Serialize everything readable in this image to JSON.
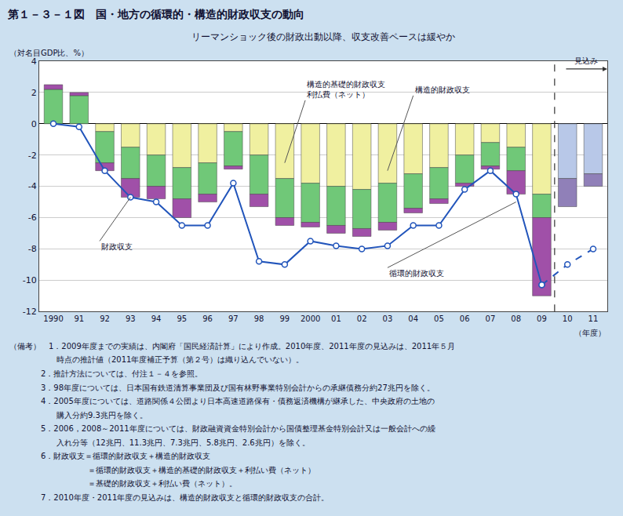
{
  "chart_data": {
    "type": "bar",
    "title": "第１－３－１図　国・地方の循環的・構造的財政収支の動向",
    "subtitle": "リーマンショック後の財政出動以降、収支改善ペースは緩やか",
    "ylabel": "（対名目GDP比、%）",
    "xlabel": "（年度）",
    "background_color": "#cce0f0",
    "chart_bg": "#ffffff",
    "categories": [
      "1990",
      "91",
      "92",
      "93",
      "94",
      "95",
      "96",
      "97",
      "98",
      "99",
      "2000",
      "01",
      "02",
      "03",
      "04",
      "05",
      "06",
      "07",
      "08",
      "09",
      "10",
      "11"
    ],
    "stacked": true,
    "grid": true,
    "ylim": [
      -12,
      4
    ],
    "yticks": [
      -12,
      -10,
      -8,
      -6,
      -4,
      -2,
      0,
      2,
      4
    ],
    "series": [
      {
        "type": "bar",
        "colors": [
          "#70c878",
          "#70c878",
          "#f0f0a0",
          "#f0f0a0",
          "#f0f0a0",
          "#f0f0a0",
          "#f0f0a0",
          "#f0f0a0",
          "#f0f0a0",
          "#f0f0a0",
          "#f0f0a0",
          "#f0f0a0",
          "#f0f0a0",
          "#f0f0a0",
          "#f0f0a0",
          "#f0f0a0",
          "#f0f0a0",
          "#f0f0a0",
          "#f0f0a0",
          "#f0f0a0",
          "#b8c8e8",
          "#b8c8e8"
        ],
        "values": [
          2.2,
          1.8,
          -0.5,
          -1.5,
          -2.0,
          -2.8,
          -2.5,
          -0.5,
          -2.0,
          -3.5,
          -3.8,
          -4.0,
          -4.2,
          -3.8,
          -3.2,
          -2.8,
          -2.0,
          -1.2,
          -1.5,
          -4.5,
          -3.5,
          -3.2
        ]
      },
      {
        "type": "bar",
        "color": "#70c878",
        "values": [
          null,
          null,
          -2.0,
          -2.0,
          -2.0,
          -2.0,
          -2.0,
          -2.2,
          -2.5,
          -2.5,
          -2.5,
          -2.5,
          -2.5,
          -2.5,
          -2.2,
          -2.0,
          -1.8,
          -1.5,
          -1.5,
          -1.5,
          null,
          null
        ]
      },
      {
        "type": "bar",
        "colors": [
          "#a050a8",
          "#a050a8",
          "#a050a8",
          "#a050a8",
          "#a050a8",
          "#a050a8",
          "#a050a8",
          "#a050a8",
          "#a050a8",
          "#a050a8",
          "#a050a8",
          "#a050a8",
          "#a050a8",
          "#a050a8",
          "#a050a8",
          "#a050a8",
          "#a050a8",
          "#a050a8",
          "#a050a8",
          "#a050a8",
          "#9080b8",
          "#9080b8"
        ],
        "values": [
          0.3,
          0.2,
          -0.5,
          -1.2,
          -0.8,
          -1.2,
          -0.5,
          -0.2,
          -0.8,
          -0.5,
          -0.3,
          -0.5,
          -0.5,
          -0.5,
          -0.3,
          -0.3,
          -0.2,
          -0.2,
          -1.5,
          -5.0,
          -1.8,
          -0.8
        ]
      },
      {
        "type": "line",
        "color": "#2255bb",
        "marker": "circle",
        "line_style": "solid",
        "values": [
          0.0,
          -0.2,
          -3.0,
          -4.7,
          -5.0,
          -6.5,
          -6.5,
          -3.8,
          -8.8,
          -9.0,
          -7.5,
          -7.8,
          -8.0,
          -7.8,
          -6.5,
          -6.5,
          -4.2,
          -3.0,
          -4.5,
          -10.3,
          null,
          null
        ]
      },
      {
        "type": "line",
        "color": "#2255bb",
        "marker": "circle",
        "line_style": "dashed",
        "values": [
          null,
          null,
          null,
          null,
          null,
          null,
          null,
          null,
          null,
          null,
          null,
          null,
          null,
          null,
          null,
          null,
          null,
          null,
          null,
          -10.3,
          -9.0,
          -8.0
        ]
      }
    ],
    "annotations": [
      {
        "text": "構造的基礎的財政収支\n利払費（ネット）"
      },
      {
        "text": "構造的財政収支"
      },
      {
        "text": "財政収支"
      },
      {
        "text": "循環的財政収支"
      },
      {
        "text": "見込み"
      }
    ],
    "notes": [
      "（備考）　1．2009年度までの実績は、内閣府「国民経済計算」により作成。2010年度、2011年度の見込みは、2011年５月",
      "　　　　　　時点の推計値（2011年度補正予算（第２号）は織り込んでいない）。",
      "　　　　2．推計方法については、付注１－４を参照。",
      "　　　　3．98年度については、日本国有鉄道清算事業団及び国有林野事業特別会計からの承継債務分約27兆円を除く。",
      "　　　　4．2005年度については、道路関係４公団より日本高速道路保有・債務返済機構が継承した、中央政府の土地の",
      "　　　　　　購入分約9.3兆円を除く。",
      "　　　　5．2006，2008～2011年度については、財政融資資金特別会計から国債整理基金特別会計又は一般会計への繰",
      "　　　　　　入れ分等（12兆円、11.3兆円、7.3兆円、5.8兆円、2.6兆円）を除く。",
      "　　　　6．財政収支＝循環的財政収支＋構造的財政収支",
      "　　　　　　　　　　＝循環的財政収支＋構造的基礎的財政収支＋利払い費（ネット）",
      "　　　　　　　　　　＝基礎的財政収支＋利払い費（ネット）。",
      "　　　　7．2010年度・2011年度の見込みは、構造的財政収支と循環的財政収支の合計。"
    ]
  }
}
